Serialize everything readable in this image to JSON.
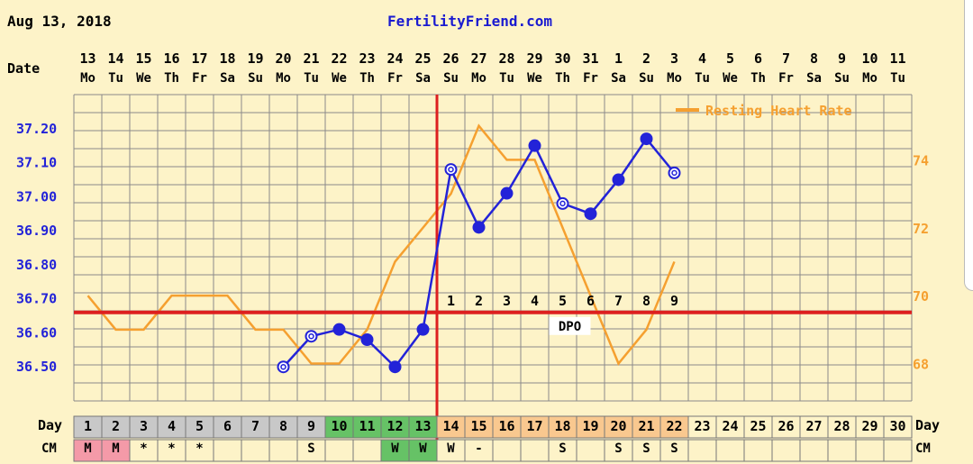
{
  "header": {
    "date": "Aug 13, 2018",
    "site": "FertilityFriend.com"
  },
  "colors": {
    "temperature": "#2323d8",
    "heart_rate": "#f5a030",
    "coverline": "#dd1f1f",
    "grid": "#8a8a8a",
    "days_green": "#66c266",
    "days_orange": "#f9c88f",
    "days_grey": "#c8c8c8",
    "menses": "#f49aa8"
  },
  "chart_data": {
    "type": "line",
    "date_row_label": "Date",
    "day_row_label": "Day",
    "dates": [
      "13",
      "14",
      "15",
      "16",
      "17",
      "18",
      "19",
      "20",
      "21",
      "22",
      "23",
      "24",
      "25",
      "26",
      "27",
      "28",
      "29",
      "30",
      "31",
      "1",
      "2",
      "3",
      "4",
      "5",
      "6",
      "7",
      "8",
      "9",
      "10",
      "11"
    ],
    "weekdays": [
      "Mo",
      "Tu",
      "We",
      "Th",
      "Fr",
      "Sa",
      "Su",
      "Mo",
      "Tu",
      "We",
      "Th",
      "Fr",
      "Sa",
      "Su",
      "Mo",
      "Tu",
      "We",
      "Th",
      "Fr",
      "Sa",
      "Su",
      "Mo",
      "Tu",
      "We",
      "Th",
      "Fr",
      "Sa",
      "Su",
      "Mo",
      "Tu"
    ],
    "cycle_days": [
      "1",
      "2",
      "3",
      "4",
      "5",
      "6",
      "7",
      "8",
      "9",
      "10",
      "11",
      "12",
      "13",
      "14",
      "15",
      "16",
      "17",
      "18",
      "19",
      "20",
      "21",
      "22",
      "23",
      "24",
      "25",
      "26",
      "27",
      "28",
      "29",
      "30"
    ],
    "y_left_ticks": [
      "37.20",
      "37.10",
      "37.00",
      "36.90",
      "36.80",
      "36.70",
      "36.60",
      "36.50"
    ],
    "y_left_range": [
      36.4,
      37.3
    ],
    "y_right_ticks": [
      "74",
      "72",
      "70",
      "68"
    ],
    "y_right_range": [
      66.9,
      75.92
    ],
    "series": [
      {
        "name": "Temperature",
        "axis": "left",
        "values": [
          null,
          null,
          null,
          null,
          null,
          null,
          null,
          36.5,
          36.59,
          36.61,
          36.58,
          36.5,
          36.61,
          37.08,
          36.91,
          37.01,
          37.15,
          36.98,
          36.95,
          37.05,
          37.17,
          37.07,
          null,
          null,
          null,
          null,
          null,
          null,
          null,
          null
        ],
        "open_points": [
          8,
          9,
          14,
          18,
          22
        ]
      },
      {
        "name": "Resting Heart Rate",
        "axis": "right",
        "values": [
          70,
          69,
          69,
          70,
          70,
          70,
          69,
          69,
          68,
          68,
          69,
          71,
          72,
          73,
          75,
          74,
          74,
          72,
          70,
          68,
          69,
          71,
          null,
          null,
          null,
          null,
          null,
          null,
          null,
          null
        ]
      }
    ],
    "coverline": 36.66,
    "ovulation_day": 13,
    "dpo_labels": [
      "1",
      "2",
      "3",
      "4",
      "5",
      "6",
      "7",
      "8",
      "9"
    ],
    "dpo_text": "DPO",
    "fertile_days": [
      10,
      11,
      12,
      13
    ],
    "menses_days": [
      1,
      2
    ],
    "luteal_days": [
      14,
      15,
      16,
      17,
      18,
      19,
      20,
      21,
      22
    ],
    "bottom_row_label": "CM",
    "bottom_row_marks": [
      "M",
      "M",
      "*",
      "*",
      "*",
      "",
      "",
      "",
      "S",
      "",
      "",
      "W",
      "W",
      "W",
      "-",
      "",
      "",
      "S",
      "",
      "S",
      "S",
      "S",
      "",
      "",
      "",
      "",
      "",
      "",
      "",
      ""
    ],
    "legend": "Resting Heart Rate",
    "legend_position": "top-right",
    "grid": true
  }
}
